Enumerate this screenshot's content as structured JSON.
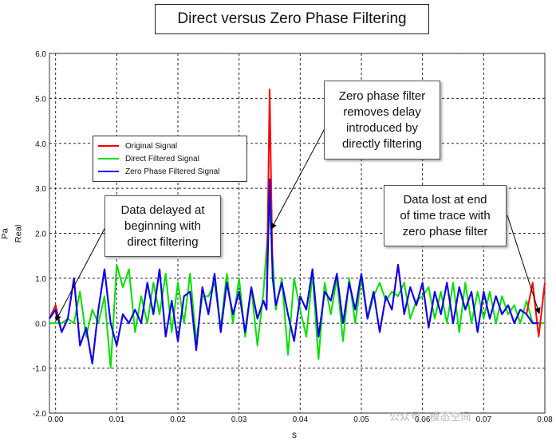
{
  "chart_data": {
    "type": "line",
    "title": "Direct versus Zero Phase Filtering",
    "xlabel": "s",
    "ylabel_units": "Pa",
    "ylabel": "Real",
    "xlim": [
      -0.001,
      0.08
    ],
    "ylim": [
      -2.0,
      6.0
    ],
    "x_ticks": [
      "0.00",
      "0.01",
      "0.02",
      "0.03",
      "0.04",
      "0.05",
      "0.06",
      "0.07",
      "0.08"
    ],
    "y_ticks": [
      "-2.0",
      "-1.0",
      "0.0",
      "1.0",
      "2.0",
      "3.0",
      "4.0",
      "5.0",
      "6.0"
    ],
    "grid": true,
    "legend_placement": "upper-left",
    "series": [
      {
        "name": "Original Signal",
        "color": "#ff0000",
        "x": [
          -0.001,
          0.0,
          0.001,
          0.002,
          0.003,
          0.004,
          0.005,
          0.006,
          0.007,
          0.008,
          0.009,
          0.01,
          0.011,
          0.012,
          0.013,
          0.014,
          0.015,
          0.016,
          0.017,
          0.018,
          0.019,
          0.02,
          0.021,
          0.022,
          0.023,
          0.024,
          0.025,
          0.026,
          0.027,
          0.028,
          0.029,
          0.03,
          0.031,
          0.032,
          0.033,
          0.034,
          0.0345,
          0.035,
          0.0355,
          0.036,
          0.037,
          0.038,
          0.039,
          0.04,
          0.041,
          0.042,
          0.043,
          0.044,
          0.045,
          0.046,
          0.047,
          0.048,
          0.049,
          0.05,
          0.051,
          0.052,
          0.053,
          0.054,
          0.055,
          0.056,
          0.057,
          0.058,
          0.059,
          0.06,
          0.061,
          0.062,
          0.063,
          0.064,
          0.065,
          0.066,
          0.067,
          0.068,
          0.069,
          0.07,
          0.071,
          0.072,
          0.073,
          0.074,
          0.075,
          0.076,
          0.077,
          0.078,
          0.079,
          0.08
        ],
        "values": [
          0.1,
          0.4,
          -0.2,
          0.1,
          1.0,
          -0.5,
          -0.1,
          -0.9,
          0.3,
          1.2,
          0.0,
          -0.5,
          0.2,
          0.0,
          0.3,
          0.0,
          0.9,
          0.2,
          1.2,
          -0.3,
          0.5,
          -0.4,
          0.6,
          0.7,
          -0.6,
          0.8,
          0.2,
          1.1,
          -0.2,
          0.9,
          0.2,
          0.7,
          -0.2,
          0.8,
          0.1,
          0.5,
          0.3,
          5.2,
          1.0,
          0.4,
          0.9,
          0.2,
          -0.4,
          0.6,
          0.3,
          1.2,
          -0.3,
          0.7,
          0.5,
          1.1,
          0.0,
          0.9,
          0.3,
          1.1,
          0.1,
          0.7,
          -0.2,
          0.6,
          0.3,
          1.3,
          0.2,
          0.8,
          0.4,
          0.9,
          -0.1,
          0.7,
          0.2,
          0.9,
          0.0,
          0.8,
          0.3,
          0.7,
          -0.2,
          0.7,
          0.1,
          0.6,
          0.2,
          0.4,
          0.0,
          0.3,
          0.2,
          0.9,
          -0.3,
          0.9
        ]
      },
      {
        "name": "Direct Filtered Signal",
        "color": "#00e000",
        "x": [
          -0.001,
          0.0,
          0.001,
          0.002,
          0.003,
          0.004,
          0.005,
          0.006,
          0.007,
          0.008,
          0.009,
          0.01,
          0.011,
          0.012,
          0.013,
          0.014,
          0.015,
          0.016,
          0.017,
          0.018,
          0.019,
          0.02,
          0.021,
          0.022,
          0.023,
          0.024,
          0.025,
          0.026,
          0.027,
          0.028,
          0.029,
          0.03,
          0.031,
          0.032,
          0.033,
          0.034,
          0.035,
          0.036,
          0.037,
          0.038,
          0.039,
          0.04,
          0.041,
          0.042,
          0.043,
          0.044,
          0.045,
          0.046,
          0.047,
          0.048,
          0.049,
          0.05,
          0.051,
          0.052,
          0.053,
          0.054,
          0.055,
          0.056,
          0.057,
          0.058,
          0.059,
          0.06,
          0.061,
          0.062,
          0.063,
          0.064,
          0.065,
          0.066,
          0.067,
          0.068,
          0.069,
          0.07,
          0.071,
          0.072,
          0.073,
          0.074,
          0.075,
          0.076,
          0.077,
          0.078,
          0.079,
          0.08
        ],
        "values": [
          0.0,
          0.0,
          0.0,
          0.1,
          0.0,
          0.7,
          -0.3,
          0.3,
          0.0,
          0.6,
          -1.0,
          1.3,
          0.8,
          1.2,
          -0.2,
          0.6,
          0.0,
          0.9,
          0.2,
          1.1,
          -0.2,
          0.9,
          0.0,
          1.1,
          -0.4,
          0.6,
          0.6,
          0.9,
          -0.1,
          1.1,
          0.0,
          1.0,
          -0.3,
          0.8,
          -0.5,
          0.7,
          2.6,
          0.3,
          1.0,
          -0.7,
          1.0,
          0.3,
          -0.3,
          1.1,
          -0.8,
          0.9,
          0.2,
          1.0,
          -0.4,
          1.0,
          0.0,
          1.0,
          0.1,
          0.6,
          0.9,
          0.5,
          0.7,
          0.6,
          0.9,
          0.1,
          0.5,
          0.6,
          0.8,
          0.1,
          0.7,
          0.0,
          0.9,
          -0.2,
          0.9,
          0.0,
          0.7,
          0.1,
          0.7,
          0.0,
          0.6,
          0.2,
          0.4,
          0.0,
          0.5,
          0.0,
          0.0,
          0.0
        ]
      },
      {
        "name": "Zero Phase Filtered Signal",
        "color": "#0000ff",
        "x": [
          -0.001,
          0.0,
          0.001,
          0.002,
          0.003,
          0.004,
          0.005,
          0.006,
          0.007,
          0.008,
          0.009,
          0.01,
          0.011,
          0.012,
          0.013,
          0.014,
          0.015,
          0.016,
          0.017,
          0.018,
          0.019,
          0.02,
          0.021,
          0.022,
          0.023,
          0.024,
          0.025,
          0.026,
          0.027,
          0.028,
          0.029,
          0.03,
          0.031,
          0.032,
          0.033,
          0.034,
          0.0345,
          0.035,
          0.0355,
          0.036,
          0.037,
          0.038,
          0.039,
          0.04,
          0.041,
          0.042,
          0.043,
          0.044,
          0.045,
          0.046,
          0.047,
          0.048,
          0.049,
          0.05,
          0.051,
          0.052,
          0.053,
          0.054,
          0.055,
          0.056,
          0.057,
          0.058,
          0.059,
          0.06,
          0.061,
          0.062,
          0.063,
          0.064,
          0.065,
          0.066,
          0.067,
          0.068,
          0.069,
          0.07,
          0.071,
          0.072,
          0.073,
          0.074,
          0.075,
          0.076,
          0.077,
          0.078,
          0.079
        ],
        "values": [
          0.1,
          0.3,
          -0.2,
          0.1,
          1.0,
          -0.5,
          -0.1,
          -0.9,
          0.3,
          1.2,
          0.0,
          -0.5,
          0.2,
          0.0,
          0.3,
          0.0,
          0.9,
          0.2,
          1.2,
          -0.3,
          0.5,
          -0.4,
          0.6,
          0.7,
          -0.6,
          0.8,
          0.2,
          1.1,
          -0.2,
          0.9,
          0.2,
          0.7,
          -0.2,
          0.8,
          0.1,
          0.5,
          0.3,
          3.2,
          1.0,
          0.4,
          0.9,
          0.2,
          -0.4,
          0.6,
          0.3,
          1.2,
          -0.3,
          0.7,
          0.5,
          1.1,
          0.0,
          0.9,
          0.3,
          1.1,
          0.1,
          0.7,
          -0.2,
          0.6,
          0.3,
          1.3,
          0.2,
          0.8,
          0.4,
          0.9,
          -0.1,
          0.7,
          0.2,
          0.9,
          0.0,
          0.8,
          0.3,
          0.7,
          -0.2,
          0.7,
          0.1,
          0.6,
          0.2,
          0.4,
          0.0,
          0.3,
          0.2,
          0.0,
          0.0
        ]
      }
    ],
    "annotations": [
      "Data delayed at beginning with direct filtering",
      "Zero phase filter removes delay introduced by directly filtering",
      "Data lost at end of time trace with zero phase filter"
    ]
  },
  "callouts": {
    "delay": [
      "Data delayed at",
      "beginning with",
      "direct filtering"
    ],
    "zero_phase": [
      "Zero phase filter",
      "removes delay",
      "introduced by",
      "directly filtering"
    ],
    "data_lost": [
      "Data lost at end",
      "of time trace with",
      "zero phase filter"
    ]
  },
  "watermark": "公众号 · 模态空间"
}
